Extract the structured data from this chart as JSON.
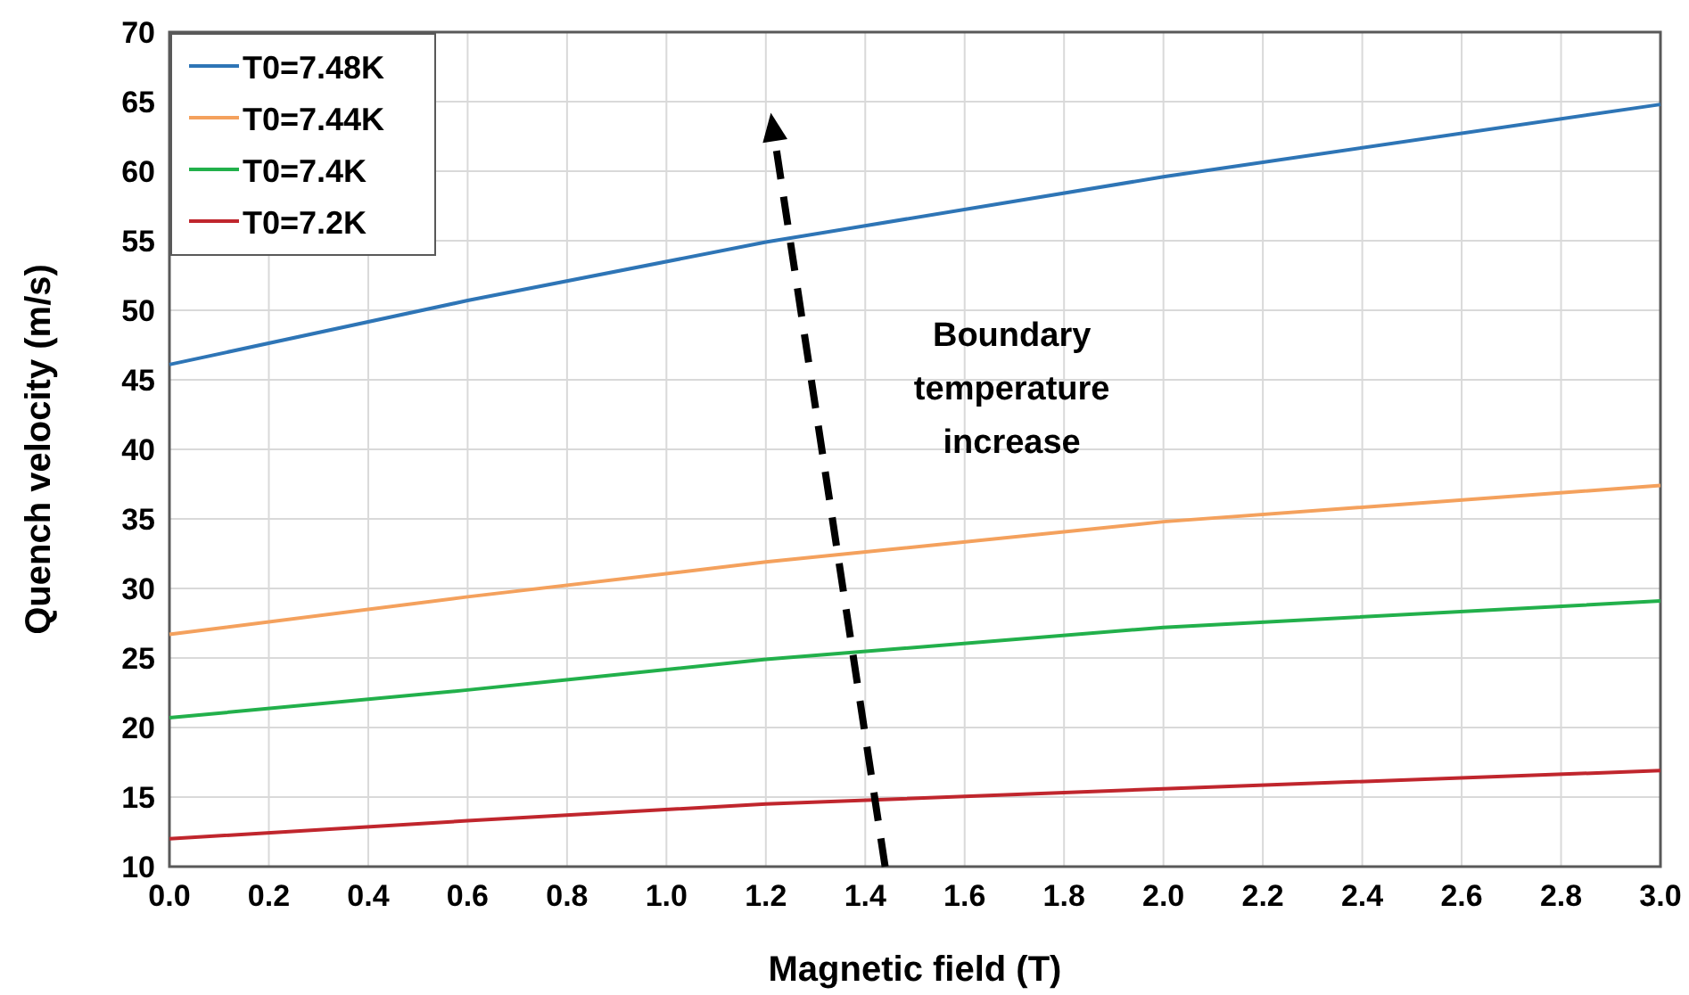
{
  "chart_data": {
    "type": "line",
    "xlabel": "Magnetic field (T)",
    "ylabel": "Quench velocity (m/s)",
    "x": [
      0,
      0.6,
      1.2,
      2.0,
      3.0
    ],
    "xlim": [
      0,
      3
    ],
    "xticks": [
      {
        "value": 0,
        "label": "0.0"
      },
      {
        "value": 0.2,
        "label": "0.2"
      },
      {
        "value": 0.4,
        "label": "0.4"
      },
      {
        "value": 0.6,
        "label": "0.6"
      },
      {
        "value": 0.8,
        "label": "0.8"
      },
      {
        "value": 1,
        "label": "1.0"
      },
      {
        "value": 1.2,
        "label": "1.2"
      },
      {
        "value": 1.4,
        "label": "1.4"
      },
      {
        "value": 1.6,
        "label": "1.6"
      },
      {
        "value": 1.8,
        "label": "1.8"
      },
      {
        "value": 2,
        "label": "2.0"
      },
      {
        "value": 2.2,
        "label": "2.2"
      },
      {
        "value": 2.4,
        "label": "2.4"
      },
      {
        "value": 2.6,
        "label": "2.6"
      },
      {
        "value": 2.8,
        "label": "2.8"
      },
      {
        "value": 3,
        "label": "3.0"
      }
    ],
    "ylim": [
      10,
      70
    ],
    "yticks": [
      10,
      15,
      20,
      25,
      30,
      35,
      40,
      45,
      50,
      55,
      60,
      65,
      70
    ],
    "series": [
      {
        "name": "T0=7.48K",
        "color": "#2e75b6",
        "values": [
          46.1,
          50.7,
          54.9,
          59.6,
          64.8
        ]
      },
      {
        "name": "T0=7.44K",
        "color": "#f4a15d",
        "values": [
          26.7,
          29.4,
          31.9,
          34.8,
          37.4
        ]
      },
      {
        "name": "T0=7.4K",
        "color": "#22b04b",
        "values": [
          20.7,
          22.7,
          24.9,
          27.2,
          29.1
        ]
      },
      {
        "name": "T0=7.2K",
        "color": "#c0262d",
        "values": [
          12.0,
          13.3,
          14.5,
          15.6,
          16.9
        ]
      }
    ],
    "annotations": [
      "Boundary temperature increase"
    ],
    "grid": true,
    "legend": "top left",
    "line_style": "solid",
    "marker": "none"
  }
}
